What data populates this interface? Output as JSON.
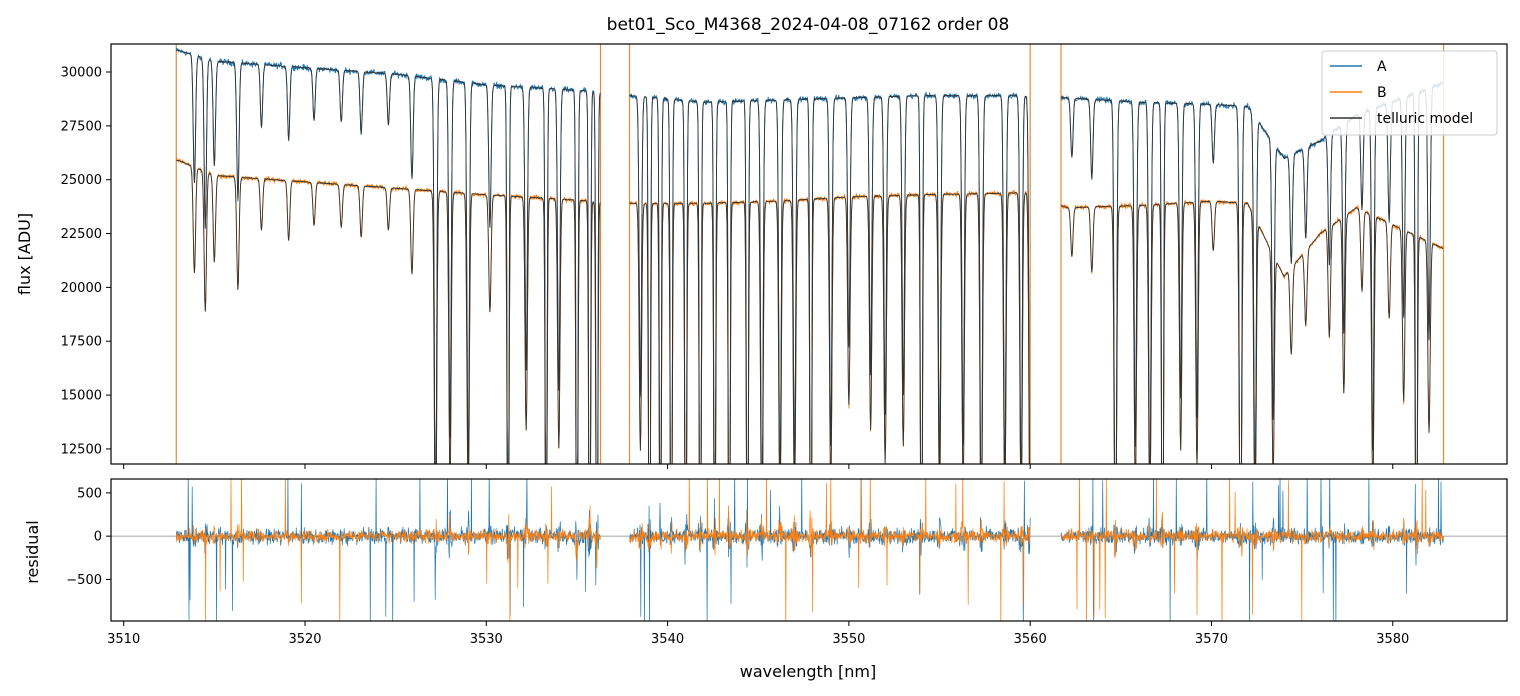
{
  "chart_data": {
    "type": "line",
    "title": "bet01_Sco_M4368_2024-04-08_07162  order 08",
    "xlabel": "wavelength [nm]",
    "xlim": [
      3509.3,
      3586.3
    ],
    "x_ticks": [
      3510,
      3520,
      3530,
      3540,
      3550,
      3560,
      3570,
      3580
    ],
    "x_tick_labels": [
      "3510",
      "3520",
      "3530",
      "3540",
      "3550",
      "3560",
      "3570",
      "3580"
    ],
    "data_segments": [
      [
        3512.9,
        3536.3
      ],
      [
        3537.9,
        3560.0
      ],
      [
        3561.7,
        3582.8
      ]
    ],
    "colors": {
      "A": "#1f77b4",
      "B": "#ff7f0e",
      "telluric": "#333333",
      "zero_line": "#888888"
    },
    "legend": {
      "placement": "upper-right",
      "entries": [
        {
          "label": "A",
          "color": "#1f77b4"
        },
        {
          "label": "B",
          "color": "#ff7f0e"
        },
        {
          "label": "telluric model",
          "color": "#333333"
        }
      ]
    },
    "panels": [
      {
        "id": "flux",
        "ylabel": "flux [ADU]",
        "ylim": [
          11800,
          31300
        ],
        "y_ticks": [
          12500,
          15000,
          17500,
          20000,
          22500,
          25000,
          27500,
          30000
        ],
        "y_tick_labels": [
          "12500",
          "15000",
          "17500",
          "20000",
          "22500",
          "25000",
          "27500",
          "30000"
        ],
        "series": [
          {
            "name": "A",
            "continuum_x": [
              3513.0,
              3515.0,
              3520.0,
              3525.0,
              3530.0,
              3536.0,
              3538.0,
              3542.0,
              3546.0,
              3550.0,
              3554.0,
              3560.0,
              3562.0,
              3566.0,
              3570.0,
              3572.0,
              3574.0,
              3576.0,
              3578.0,
              3582.8
            ],
            "continuum_y": [
              31000,
              30500,
              30200,
              29900,
              29400,
              29100,
              28900,
              28600,
              28700,
              28800,
              28900,
              28900,
              28800,
              28600,
              28500,
              28400,
              26000,
              26800,
              28000,
              29500
            ]
          },
          {
            "name": "B",
            "continuum_x": [
              3513.0,
              3515.0,
              3520.0,
              3525.0,
              3530.0,
              3536.0,
              3538.0,
              3542.0,
              3546.0,
              3550.0,
              3554.0,
              3560.0,
              3562.0,
              3566.0,
              3570.0,
              3572.0,
              3574.0,
              3576.0,
              3578.0,
              3582.8
            ],
            "continuum_y": [
              25900,
              25200,
              24900,
              24600,
              24300,
              24000,
              23900,
              23900,
              24000,
              24200,
              24300,
              24400,
              23700,
              23800,
              24000,
              23900,
              20500,
              22500,
              23700,
              21800
            ]
          }
        ],
        "absorption_lines": [
          {
            "x": 3513.9,
            "depth": 0.12
          },
          {
            "x": 3514.5,
            "depth": 0.16
          },
          {
            "x": 3515.0,
            "depth": 0.1
          },
          {
            "x": 3516.3,
            "depth": 0.13
          },
          {
            "x": 3517.6,
            "depth": 0.06
          },
          {
            "x": 3519.1,
            "depth": 0.07
          },
          {
            "x": 3520.5,
            "depth": 0.05
          },
          {
            "x": 3522.0,
            "depth": 0.05
          },
          {
            "x": 3523.1,
            "depth": 0.06
          },
          {
            "x": 3524.6,
            "depth": 0.05
          },
          {
            "x": 3525.9,
            "depth": 0.1
          },
          {
            "x": 3527.2,
            "depth": 0.45
          },
          {
            "x": 3528.0,
            "depth": 0.35
          },
          {
            "x": 3529.0,
            "depth": 0.38
          },
          {
            "x": 3530.2,
            "depth": 0.14
          },
          {
            "x": 3531.2,
            "depth": 0.55
          },
          {
            "x": 3532.2,
            "depth": 0.28
          },
          {
            "x": 3533.3,
            "depth": 0.55
          },
          {
            "x": 3534.0,
            "depth": 0.3
          },
          {
            "x": 3535.0,
            "depth": 0.6
          },
          {
            "x": 3535.7,
            "depth": 0.62
          },
          {
            "x": 3536.1,
            "depth": 0.62
          },
          {
            "x": 3538.5,
            "depth": 0.3
          },
          {
            "x": 3539.0,
            "depth": 0.62
          },
          {
            "x": 3539.6,
            "depth": 0.58
          },
          {
            "x": 3540.2,
            "depth": 0.62
          },
          {
            "x": 3541.0,
            "depth": 0.6
          },
          {
            "x": 3541.8,
            "depth": 0.62
          },
          {
            "x": 3542.6,
            "depth": 0.55
          },
          {
            "x": 3543.4,
            "depth": 0.62
          },
          {
            "x": 3544.4,
            "depth": 0.6
          },
          {
            "x": 3545.2,
            "depth": 0.45
          },
          {
            "x": 3546.2,
            "depth": 0.4
          },
          {
            "x": 3547.0,
            "depth": 0.38
          },
          {
            "x": 3547.9,
            "depth": 0.62
          },
          {
            "x": 3549.0,
            "depth": 0.35
          },
          {
            "x": 3550.0,
            "depth": 0.25
          },
          {
            "x": 3551.2,
            "depth": 0.28
          },
          {
            "x": 3552.0,
            "depth": 0.32
          },
          {
            "x": 3553.0,
            "depth": 0.3
          },
          {
            "x": 3554.0,
            "depth": 0.62
          },
          {
            "x": 3555.0,
            "depth": 0.38
          },
          {
            "x": 3556.3,
            "depth": 0.35
          },
          {
            "x": 3557.3,
            "depth": 0.45
          },
          {
            "x": 3558.6,
            "depth": 0.38
          },
          {
            "x": 3559.5,
            "depth": 0.4
          },
          {
            "x": 3560.0,
            "depth": 0.45
          },
          {
            "x": 3562.3,
            "depth": 0.06
          },
          {
            "x": 3563.4,
            "depth": 0.08
          },
          {
            "x": 3564.7,
            "depth": 0.5
          },
          {
            "x": 3565.8,
            "depth": 0.35
          },
          {
            "x": 3566.6,
            "depth": 0.4
          },
          {
            "x": 3567.3,
            "depth": 0.62
          },
          {
            "x": 3568.3,
            "depth": 0.3
          },
          {
            "x": 3569.2,
            "depth": 0.32
          },
          {
            "x": 3570.1,
            "depth": 0.06
          },
          {
            "x": 3571.6,
            "depth": 0.5
          },
          {
            "x": 3572.4,
            "depth": 0.4
          },
          {
            "x": 3573.4,
            "depth": 0.3
          },
          {
            "x": 3574.4,
            "depth": 0.12
          },
          {
            "x": 3575.2,
            "depth": 0.1
          },
          {
            "x": 3576.5,
            "depth": 0.14
          },
          {
            "x": 3577.3,
            "depth": 0.22
          },
          {
            "x": 3578.3,
            "depth": 0.1
          },
          {
            "x": 3578.9,
            "depth": 0.35
          },
          {
            "x": 3579.8,
            "depth": 0.12
          },
          {
            "x": 3580.6,
            "depth": 0.22
          },
          {
            "x": 3581.3,
            "depth": 0.62
          },
          {
            "x": 3582.0,
            "depth": 0.25
          }
        ],
        "vertical_lines": [
          3512.9,
          3536.3,
          3537.9,
          3560.0,
          3561.7,
          3582.8
        ]
      },
      {
        "id": "residual",
        "ylabel": "residual",
        "ylim": [
          -980,
          660
        ],
        "y_ticks": [
          -500,
          0,
          500
        ],
        "y_tick_labels": [
          "−500",
          "0",
          "500"
        ],
        "zero_line": 0,
        "noise_amplitude": {
          "A": 120,
          "B": 100
        }
      }
    ]
  }
}
